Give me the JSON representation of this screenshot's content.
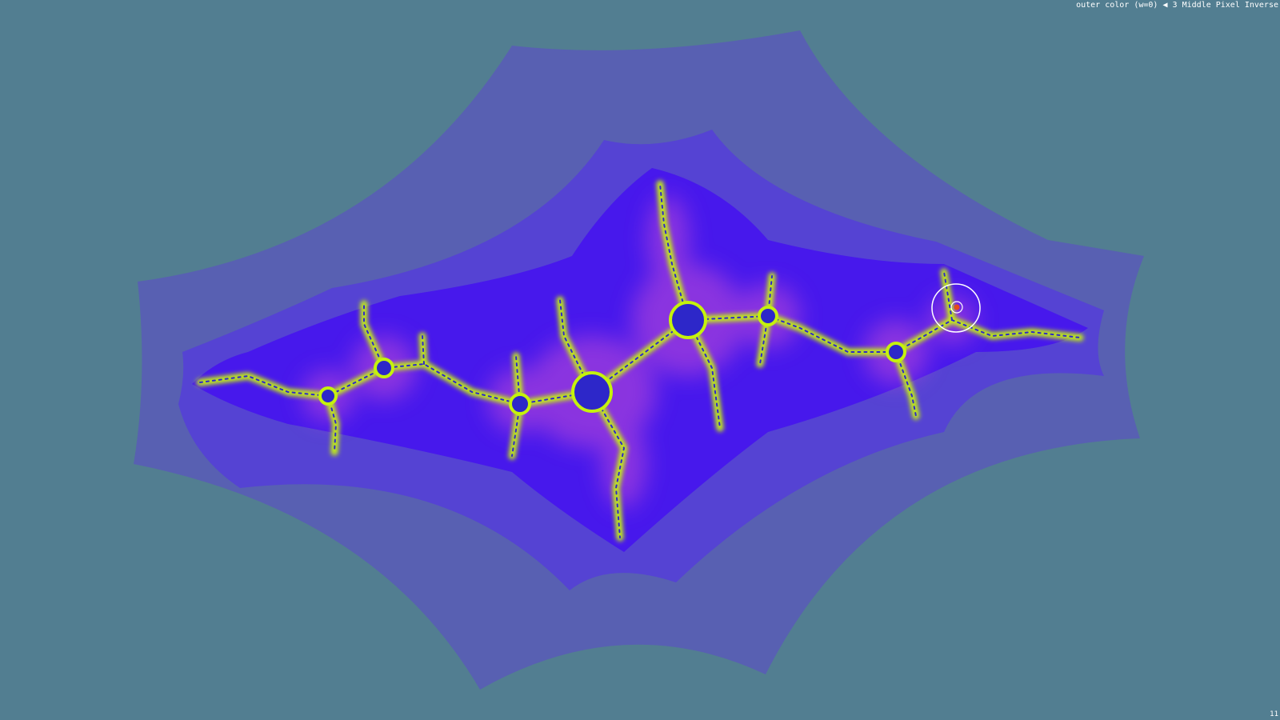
{
  "viewer": {
    "background_color": "#527e91"
  },
  "hud": {
    "setting_label": "outer color (w=0)",
    "prev_arrow": "◀",
    "setting_value": "3 Middle Pixel Inverse",
    "frame_counter": "11"
  },
  "palette": {
    "outer_band": "#5860b2",
    "middle_band": "#5543d3",
    "inner_band": "#4718ec",
    "glow": "#c14cd6",
    "filament": "#c5f20c",
    "filament_core": "#2d27c9",
    "marker": "#ffffff",
    "marker_dot": "#e34c1b"
  },
  "icons": {
    "target_marker": "target-ring-icon"
  }
}
